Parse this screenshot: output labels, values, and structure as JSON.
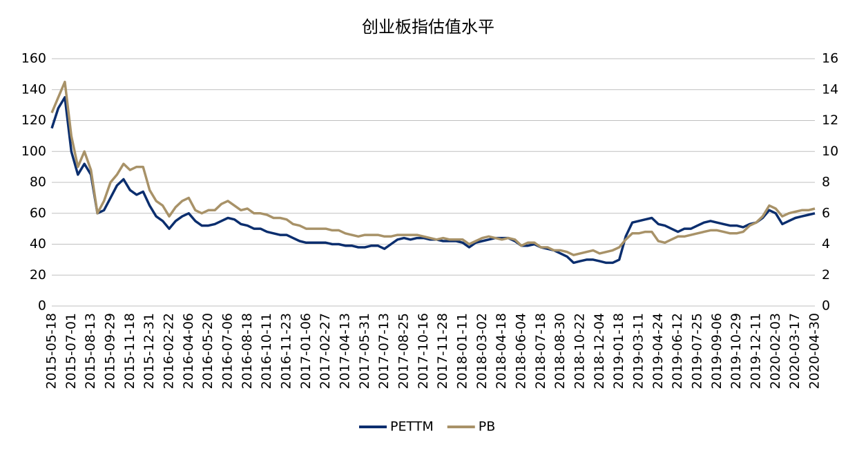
{
  "chart_data": {
    "type": "line",
    "title": "创业板指估值水平",
    "categories": [
      "2015-05-18",
      null,
      null,
      "2015-07-01",
      null,
      null,
      "2015-08-13",
      null,
      null,
      "2015-09-29",
      null,
      null,
      "2015-11-18",
      null,
      null,
      "2015-12-31",
      null,
      null,
      "2016-02-22",
      null,
      null,
      "2016-04-06",
      null,
      null,
      "2016-05-20",
      null,
      null,
      "2016-07-06",
      null,
      null,
      "2016-08-18",
      null,
      null,
      "2016-10-11",
      null,
      null,
      "2016-11-23",
      null,
      null,
      "2017-01-06",
      null,
      null,
      "2017-02-27",
      null,
      null,
      "2017-04-13",
      null,
      null,
      "2017-05-31",
      null,
      null,
      "2017-07-13",
      null,
      null,
      "2017-08-25",
      null,
      null,
      "2017-10-16",
      null,
      null,
      "2017-11-28",
      null,
      null,
      "2018-01-11",
      null,
      null,
      "2018-03-02",
      null,
      null,
      "2018-04-18",
      null,
      null,
      "2018-06-04",
      null,
      null,
      "2018-07-18",
      null,
      null,
      "2018-08-30",
      null,
      null,
      "2018-10-22",
      null,
      null,
      "2018-12-04",
      null,
      null,
      "2019-01-18",
      null,
      null,
      "2019-03-11",
      null,
      null,
      "2019-04-24",
      null,
      null,
      "2019-06-12",
      null,
      null,
      "2019-07-25",
      null,
      null,
      "2019-09-06",
      null,
      null,
      "2019-10-29",
      null,
      null,
      "2019-12-11",
      null,
      null,
      "2020-02-03",
      null,
      null,
      "2020-03-17",
      null,
      null,
      "2020-04-30"
    ],
    "series": [
      {
        "name": "PETTM",
        "color": "#0b2e6e",
        "values": [
          115,
          128,
          135,
          100,
          85,
          92,
          85,
          60,
          62,
          70,
          78,
          82,
          75,
          72,
          74,
          65,
          58,
          55,
          50,
          55,
          58,
          60,
          55,
          52,
          52,
          53,
          55,
          57,
          56,
          53,
          52,
          50,
          50,
          48,
          47,
          46,
          46,
          44,
          42,
          41,
          41,
          41,
          41,
          40,
          40,
          39,
          39,
          38,
          38,
          39,
          39,
          37,
          40,
          43,
          44,
          43,
          44,
          44,
          43,
          43,
          42,
          42,
          42,
          41,
          38,
          41,
          42,
          43,
          44,
          44,
          44,
          42,
          39,
          39,
          40,
          38,
          37,
          36,
          34,
          32,
          28,
          29,
          30,
          30,
          29,
          28,
          28,
          30,
          45,
          54,
          55,
          56,
          57,
          53,
          52,
          50,
          48,
          50,
          50,
          52,
          54,
          55,
          54,
          53,
          52,
          52,
          51,
          53,
          54,
          57,
          62,
          60,
          53,
          55,
          57,
          58,
          59,
          60
        ]
      },
      {
        "name": "PB",
        "color": "#a89268",
        "axis": "y2",
        "values": [
          12.5,
          13.5,
          14.5,
          11.0,
          9.0,
          10.0,
          8.8,
          6.0,
          6.8,
          8.0,
          8.5,
          9.2,
          8.8,
          9.0,
          9.0,
          7.5,
          6.8,
          6.5,
          5.8,
          6.4,
          6.8,
          7.0,
          6.2,
          6.0,
          6.2,
          6.2,
          6.6,
          6.8,
          6.5,
          6.2,
          6.3,
          6.0,
          6.0,
          5.9,
          5.7,
          5.7,
          5.6,
          5.3,
          5.2,
          5.0,
          5.0,
          5.0,
          5.0,
          4.9,
          4.9,
          4.7,
          4.6,
          4.5,
          4.6,
          4.6,
          4.6,
          4.5,
          4.5,
          4.6,
          4.6,
          4.6,
          4.6,
          4.5,
          4.4,
          4.3,
          4.4,
          4.3,
          4.3,
          4.3,
          4.0,
          4.2,
          4.4,
          4.5,
          4.4,
          4.3,
          4.4,
          4.3,
          3.9,
          4.1,
          4.1,
          3.8,
          3.8,
          3.6,
          3.6,
          3.5,
          3.3,
          3.4,
          3.5,
          3.6,
          3.4,
          3.5,
          3.6,
          3.8,
          4.3,
          4.7,
          4.7,
          4.8,
          4.8,
          4.2,
          4.1,
          4.3,
          4.5,
          4.5,
          4.6,
          4.7,
          4.8,
          4.9,
          4.9,
          4.8,
          4.7,
          4.7,
          4.8,
          5.2,
          5.4,
          5.8,
          6.5,
          6.3,
          5.8,
          6.0,
          6.1,
          6.2,
          6.2,
          6.3
        ]
      }
    ],
    "ylim": [
      0,
      160
    ],
    "yticks": [
      0,
      20,
      40,
      60,
      80,
      100,
      120,
      140,
      160
    ],
    "y2lim": [
      0,
      16
    ],
    "y2ticks": [
      0,
      2,
      4,
      6,
      8,
      10,
      12,
      14,
      16
    ],
    "grid": true,
    "legend": "bottom"
  }
}
